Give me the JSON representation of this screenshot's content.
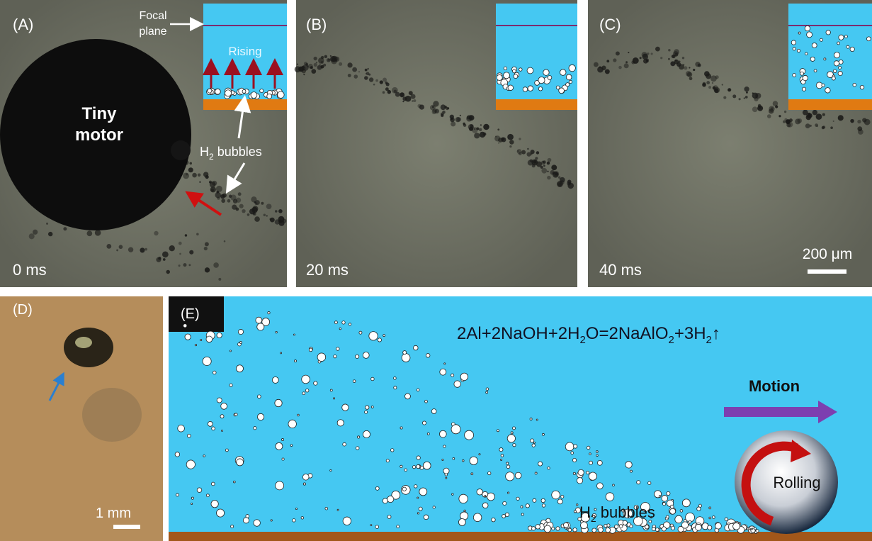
{
  "panels": [
    {
      "label": "(A)",
      "time": "0 ms"
    },
    {
      "label": "(B)",
      "time": "20 ms"
    },
    {
      "label": "(C)",
      "time": "40 ms"
    },
    {
      "label": "(D)"
    },
    {
      "label": "(E)"
    }
  ],
  "panel_a": {
    "focal_plane": [
      "Focal",
      "plane"
    ],
    "rising": "Rising",
    "motor": [
      "Tiny",
      "motor"
    ],
    "bubbles": {
      "text": "H",
      "sub": "2",
      "rest": " bubbles"
    }
  },
  "scale_bars": {
    "c": "200 μm",
    "d": "1 mm"
  },
  "panel_e": {
    "equation": [
      "2Al+2NaOH+2H",
      "2",
      "O=2NaAlO",
      "2",
      "+3H",
      "2",
      "↑"
    ],
    "motion": "Motion",
    "rolling": "Rolling",
    "bubbles": {
      "text": "H",
      "sub": "2",
      "rest": " bubbles"
    }
  }
}
